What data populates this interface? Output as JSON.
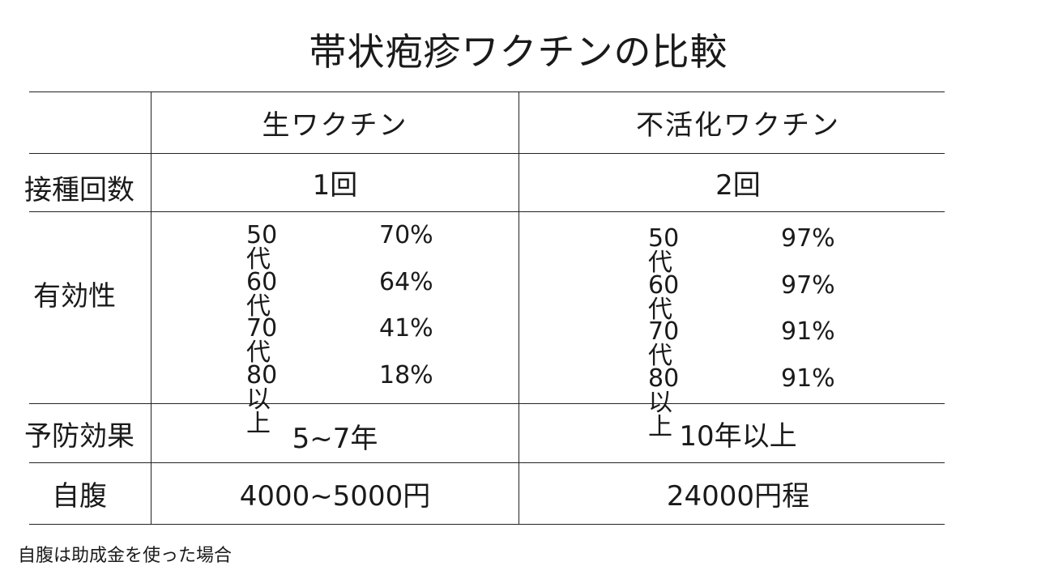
{
  "title": "帯状疱疹ワクチンの比較",
  "columns": [
    "生ワクチン",
    "不活化ワクチン"
  ],
  "rows": {
    "doses": {
      "label": "接種回数",
      "live": "1回",
      "inactivated": "2回"
    },
    "efficacy": {
      "label": "有効性",
      "live": [
        {
          "age": "50代",
          "value": "70%"
        },
        {
          "age": "60代",
          "value": "64%"
        },
        {
          "age": "70代",
          "value": "41%"
        },
        {
          "age": "80以上",
          "value": "18%"
        }
      ],
      "inactivated": [
        {
          "age": "50代",
          "value": "97%"
        },
        {
          "age": "60代",
          "value": "97%"
        },
        {
          "age": "70代",
          "value": "91%"
        },
        {
          "age": "80以上",
          "value": "91%"
        }
      ]
    },
    "duration": {
      "label": "予防効果",
      "live": "5~7年",
      "inactivated": "10年以上"
    },
    "cost": {
      "label": "自腹",
      "live": "4000~5000円",
      "inactivated": "24000円程"
    }
  },
  "note": "自腹は助成金を使った場合"
}
